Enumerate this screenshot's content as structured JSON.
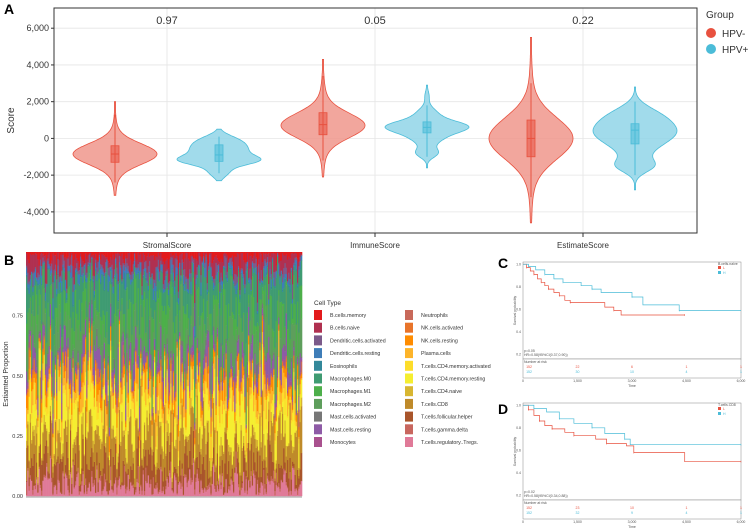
{
  "panels": {
    "a": "A",
    "b": "B",
    "c": "C",
    "d": "D"
  },
  "colors": {
    "hpv_neg": "#E8513F",
    "hpv_neg_fill": "#F0968C",
    "hpv_pos": "#4BBCD8",
    "hpv_pos_fill": "#91D5E7"
  },
  "chart_data": [
    {
      "type": "violin",
      "ylabel": "Score",
      "ylim": [
        -5150,
        7100
      ],
      "yticks": [
        {
          "v": 6000,
          "label": "6,000"
        },
        {
          "v": 4000,
          "label": "4,000"
        },
        {
          "v": 2000,
          "label": "2,000"
        },
        {
          "v": 0,
          "label": "0"
        },
        {
          "v": -2000,
          "label": "-2,000"
        },
        {
          "v": -4000,
          "label": "-4,000"
        }
      ],
      "categories": [
        "StromalScore",
        "ImmuneScore",
        "EstimateScore"
      ],
      "pvalues": [
        "0.97",
        "0.05",
        "0.22"
      ],
      "legend": {
        "title": "Group",
        "entries": [
          "HPV-",
          "HPV+"
        ]
      },
      "violins": [
        {
          "category": 0,
          "group": "HPV-",
          "median": -850,
          "q1": -1300,
          "q3": -400,
          "whisker": [
            -2400,
            1300
          ],
          "extent": [
            -3100,
            2000
          ],
          "density": [
            [
              -850,
              550,
              1
            ],
            [
              -900,
              1100,
              0.15
            ]
          ]
        },
        {
          "category": 0,
          "group": "HPV+",
          "median": -900,
          "q1": -1250,
          "q3": -350,
          "whisker": [
            -1900,
            100
          ],
          "extent": [
            -2300,
            500
          ],
          "density": [
            [
              -1200,
              250,
              1
            ],
            [
              -650,
              350,
              0.75
            ],
            [
              -100,
              300,
              0.45
            ],
            [
              -1800,
              300,
              0.3
            ]
          ]
        },
        {
          "category": 1,
          "group": "HPV-",
          "median": 750,
          "q1": 200,
          "q3": 1400,
          "whisker": [
            -1200,
            3400
          ],
          "extent": [
            -2100,
            4300
          ],
          "density": [
            [
              700,
              650,
              1
            ],
            [
              800,
              1400,
              0.15
            ]
          ]
        },
        {
          "category": 1,
          "group": "HPV+",
          "median": 600,
          "q1": 300,
          "q3": 900,
          "whisker": [
            -1000,
            1800
          ],
          "extent": [
            -1600,
            2900
          ],
          "density": [
            [
              650,
              300,
              1
            ],
            [
              100,
              400,
              0.45
            ],
            [
              -800,
              250,
              0.3
            ],
            [
              1300,
              350,
              0.3
            ],
            [
              2300,
              300,
              0.06
            ]
          ]
        },
        {
          "category": 2,
          "group": "HPV-",
          "median": 0,
          "q1": -1000,
          "q3": 1000,
          "whisker": [
            -3200,
            3000
          ],
          "extent": [
            -4600,
            5500
          ],
          "density": [
            [
              0,
              1100,
              1
            ],
            [
              0,
              2400,
              0.1
            ]
          ]
        },
        {
          "category": 2,
          "group": "HPV+",
          "median": 450,
          "q1": -300,
          "q3": 800,
          "whisker": [
            -2000,
            2000
          ],
          "extent": [
            -2800,
            2800
          ],
          "density": [
            [
              400,
              600,
              1
            ],
            [
              1300,
              500,
              0.5
            ],
            [
              -1500,
              350,
              0.45
            ],
            [
              -500,
              700,
              0.4
            ]
          ]
        }
      ]
    },
    {
      "type": "stacked-bar",
      "ylabel": "Estiamted Proportion",
      "ylim": [
        0,
        1
      ],
      "n_samples": 220,
      "yticks": [
        "0.00",
        "0.25",
        "0.50",
        "0.75"
      ],
      "legend_title": "Cell Type",
      "cell_types": [
        {
          "name": "B.cells.memory",
          "color": "#E31A1C",
          "mean": 0.02
        },
        {
          "name": "B.cells.naive",
          "color": "#B03050",
          "mean": 0.05
        },
        {
          "name": "Dendritic.cells.activated",
          "color": "#7B5A8A",
          "mean": 0.02
        },
        {
          "name": "Dendritic.cells.resting",
          "color": "#3E7DB8",
          "mean": 0.02
        },
        {
          "name": "Eosinophils",
          "color": "#33889A",
          "mean": 0.005
        },
        {
          "name": "Macrophages.M0",
          "color": "#3F9B72",
          "mean": 0.12
        },
        {
          "name": "Macrophages.M1",
          "color": "#4DAF4A",
          "mean": 0.08
        },
        {
          "name": "Macrophages.M2",
          "color": "#5E9E5C",
          "mean": 0.12
        },
        {
          "name": "Mast.cells.activated",
          "color": "#777777",
          "mean": 0.01
        },
        {
          "name": "Mast.cells.resting",
          "color": "#8E5BA6",
          "mean": 0.05
        },
        {
          "name": "Monocytes",
          "color": "#A9518E",
          "mean": 0.01
        },
        {
          "name": "Neutrophils",
          "color": "#C8695A",
          "mean": 0.005
        },
        {
          "name": "NK.cells.activated",
          "color": "#E8742A",
          "mean": 0.01
        },
        {
          "name": "NK.cells.resting",
          "color": "#FF8C00",
          "mean": 0.03
        },
        {
          "name": "Plasma.cells",
          "color": "#FDB42A",
          "mean": 0.05
        },
        {
          "name": "T.cells.CD4.memory.activated",
          "color": "#FDDD2A",
          "mean": 0.02
        },
        {
          "name": "T.cells.CD4.memory.resting",
          "color": "#F5EE30",
          "mean": 0.12
        },
        {
          "name": "T.cells.CD4.naive",
          "color": "#D8B630",
          "mean": 0.02
        },
        {
          "name": "T.cells.CD8",
          "color": "#BF8A2A",
          "mean": 0.12
        },
        {
          "name": "T.cells.follicular.helper",
          "color": "#A9552B",
          "mean": 0.07
        },
        {
          "name": "T.cells.gamma.delta",
          "color": "#C8665E",
          "mean": 0.01
        },
        {
          "name": "T.cells.regulatory..Tregs.",
          "color": "#E07A98",
          "mean": 0.04
        }
      ]
    },
    {
      "type": "line",
      "subtype": "kaplan-meier",
      "panel": "C",
      "ylabel": "Survival probability",
      "xlabel": "Time",
      "xlim": [
        0,
        6000
      ],
      "ylim": [
        0.16,
        1.02
      ],
      "yticks": [
        "1.0",
        "0.8",
        "0.6",
        "0.4",
        "0.2"
      ],
      "xticks": [
        "0",
        "1,500",
        "3,000",
        "4,500",
        "6,000"
      ],
      "legend_title": "B.cells.naive",
      "legend": [
        "L",
        "H"
      ],
      "pvalue": "p=0.05",
      "hr": "HR=0.58(95%CI(0.37,0.90))",
      "risk_title": "Number at risk",
      "risk": [
        [
          "152",
          "22",
          "6",
          "1",
          "1"
        ],
        [
          "152",
          "30",
          "10",
          "4",
          "1"
        ]
      ],
      "series": [
        {
          "name": "L",
          "points": [
            [
              0,
              1
            ],
            [
              100,
              0.97
            ],
            [
              200,
              0.94
            ],
            [
              300,
              0.91
            ],
            [
              400,
              0.87
            ],
            [
              500,
              0.84
            ],
            [
              600,
              0.81
            ],
            [
              700,
              0.78
            ],
            [
              850,
              0.75
            ],
            [
              1000,
              0.72
            ],
            [
              1150,
              0.68
            ],
            [
              1300,
              0.66
            ],
            [
              2250,
              0.62
            ],
            [
              2500,
              0.59
            ],
            [
              2700,
              0.55
            ],
            [
              4450,
              0.55
            ]
          ]
        },
        {
          "name": "H",
          "points": [
            [
              0,
              1
            ],
            [
              150,
              0.98
            ],
            [
              350,
              0.95
            ],
            [
              600,
              0.91
            ],
            [
              850,
              0.87
            ],
            [
              1100,
              0.84
            ],
            [
              1600,
              0.81
            ],
            [
              1900,
              0.78
            ],
            [
              2150,
              0.75
            ],
            [
              3000,
              0.71
            ],
            [
              3300,
              0.64
            ],
            [
              4300,
              0.59
            ],
            [
              6000,
              0.59
            ]
          ]
        }
      ]
    },
    {
      "type": "line",
      "subtype": "kaplan-meier",
      "panel": "D",
      "ylabel": "Survival probability",
      "xlabel": "Time",
      "xlim": [
        0,
        6000
      ],
      "ylim": [
        0.16,
        1.02
      ],
      "yticks": [
        "1.0",
        "0.8",
        "0.6",
        "0.4",
        "0.2"
      ],
      "xticks": [
        "0",
        "1,500",
        "3,000",
        "4,500",
        "6,000"
      ],
      "legend_title": "T.cells.CD8",
      "legend": [
        "L",
        "H"
      ],
      "pvalue": "p=0.02",
      "hr": "HR=0.58(95%CI(0.34,0.88))",
      "risk_title": "Number at risk",
      "risk": [
        [
          "152",
          "23",
          "10",
          "1",
          "1"
        ],
        [
          "152",
          "32",
          "9",
          "4",
          "1"
        ]
      ],
      "series": [
        {
          "name": "L",
          "points": [
            [
              0,
              1
            ],
            [
              150,
              0.96
            ],
            [
              300,
              0.91
            ],
            [
              450,
              0.86
            ],
            [
              600,
              0.82
            ],
            [
              800,
              0.79
            ],
            [
              1150,
              0.76
            ],
            [
              1400,
              0.73
            ],
            [
              2000,
              0.7
            ],
            [
              2300,
              0.66
            ],
            [
              2850,
              0.64
            ],
            [
              3050,
              0.58
            ],
            [
              4450,
              0.5
            ],
            [
              6000,
              0.5
            ]
          ]
        },
        {
          "name": "H",
          "points": [
            [
              0,
              1
            ],
            [
              300,
              0.97
            ],
            [
              650,
              0.94
            ],
            [
              1000,
              0.88
            ],
            [
              1400,
              0.84
            ],
            [
              1900,
              0.8
            ],
            [
              2250,
              0.75
            ],
            [
              2800,
              0.7
            ],
            [
              2950,
              0.65
            ],
            [
              6000,
              0.65
            ]
          ]
        }
      ]
    }
  ]
}
